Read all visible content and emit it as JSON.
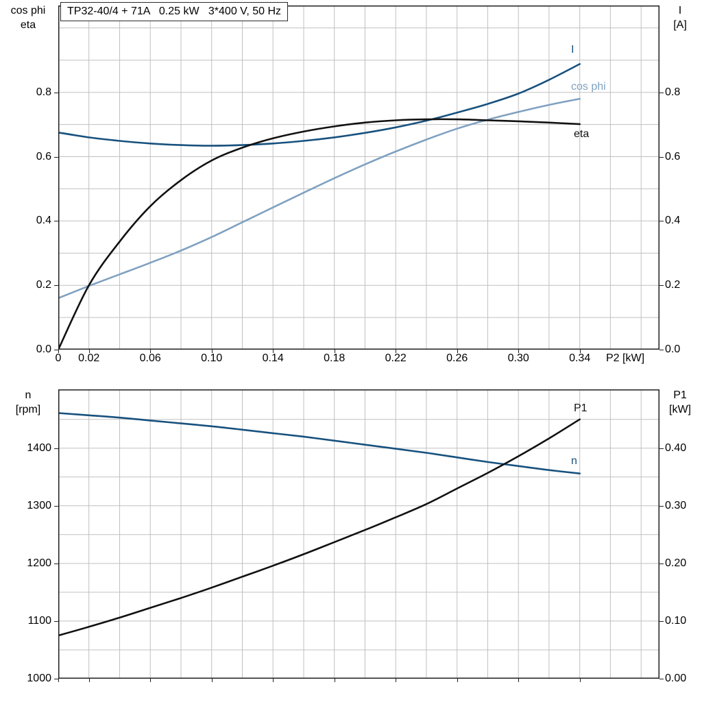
{
  "colors": {
    "grid": "#c0c0c0",
    "frame": "#1f1f1f",
    "text": "#000000",
    "curve_dark_blue": "#17517e",
    "curve_light_blue": "#7fa1c1",
    "curve_black": "#111111"
  },
  "chart_data": [
    {
      "type": "line",
      "title": "TP32-40/4 + 71A   0.25 kW   3*400 V, 50 Hz",
      "xlabel": "P2 [kW]",
      "ylabel_left": [
        "cos phi",
        "eta"
      ],
      "ylabel_right": [
        "I",
        "[A]"
      ],
      "xlim": [
        0,
        0.392
      ],
      "ylim_left": [
        0,
        1.07
      ],
      "ylim_right": [
        0,
        1.07
      ],
      "grid_step_x": 0.02,
      "grid_step_y_left": 0.1,
      "x_ticks": [
        "0",
        "0.02",
        "0.06",
        "0.10",
        "0.14",
        "0.18",
        "0.22",
        "0.26",
        "0.30",
        "0.34"
      ],
      "x_tick_values": [
        0,
        0.02,
        0.06,
        0.1,
        0.14,
        0.18,
        0.22,
        0.26,
        0.3,
        0.34
      ],
      "y_ticks_left": [
        "0.0",
        "0.2",
        "0.4",
        "0.6",
        "0.8"
      ],
      "y_tick_values_left": [
        0,
        0.2,
        0.4,
        0.6,
        0.8
      ],
      "y_ticks_right": [
        "0.0",
        "0.2",
        "0.4",
        "0.6",
        "0.8"
      ],
      "y_tick_values_right": [
        0,
        0.2,
        0.4,
        0.6,
        0.8
      ],
      "x": [
        0,
        0.02,
        0.04,
        0.06,
        0.08,
        0.1,
        0.12,
        0.14,
        0.16,
        0.18,
        0.2,
        0.22,
        0.24,
        0.26,
        0.28,
        0.3,
        0.32,
        0.34
      ],
      "series": [
        {
          "name": "I",
          "axis": "left",
          "color": "#17517e",
          "values": [
            0.675,
            0.66,
            0.649,
            0.641,
            0.636,
            0.634,
            0.636,
            0.641,
            0.649,
            0.66,
            0.674,
            0.691,
            0.712,
            0.737,
            0.764,
            0.796,
            0.839,
            0.888
          ]
        },
        {
          "name": "cos phi",
          "axis": "left",
          "color": "#7fa1c1",
          "values": [
            0.16,
            0.198,
            0.234,
            0.27,
            0.308,
            0.35,
            0.396,
            0.442,
            0.488,
            0.533,
            0.576,
            0.616,
            0.653,
            0.687,
            0.715,
            0.739,
            0.761,
            0.78
          ]
        },
        {
          "name": "eta",
          "axis": "left",
          "color": "#111111",
          "values": [
            0.0,
            0.2,
            0.336,
            0.446,
            0.527,
            0.588,
            0.628,
            0.657,
            0.678,
            0.694,
            0.706,
            0.713,
            0.716,
            0.716,
            0.713,
            0.71,
            0.706,
            0.701
          ]
        }
      ]
    },
    {
      "type": "line",
      "title": "",
      "xlabel": "",
      "ylabel_left": [
        "n",
        "[rpm]"
      ],
      "ylabel_right": [
        "P1",
        "[kW]"
      ],
      "xlim": [
        0,
        0.392
      ],
      "ylim_left": [
        1000,
        1502
      ],
      "ylim_right": [
        0,
        0.502
      ],
      "grid_step_x": 0.02,
      "grid_step_y_left": 50,
      "x_ticks": [],
      "x_tick_values": [
        0,
        0.02,
        0.06,
        0.1,
        0.14,
        0.18,
        0.22,
        0.26,
        0.3,
        0.34
      ],
      "y_ticks_left": [
        "1000",
        "1100",
        "1200",
        "1300",
        "1400"
      ],
      "y_tick_values_left": [
        1000,
        1100,
        1200,
        1300,
        1400
      ],
      "y_ticks_right": [
        "0.00",
        "0.10",
        "0.20",
        "0.30",
        "0.40"
      ],
      "y_tick_values_right": [
        0,
        0.1,
        0.2,
        0.3,
        0.4
      ],
      "x": [
        0,
        0.02,
        0.04,
        0.06,
        0.08,
        0.1,
        0.12,
        0.14,
        0.16,
        0.18,
        0.2,
        0.22,
        0.24,
        0.26,
        0.28,
        0.3,
        0.32,
        0.34
      ],
      "series": [
        {
          "name": "n",
          "axis": "left",
          "color": "#17517e",
          "values": [
            1461,
            1457,
            1453,
            1448,
            1443,
            1438,
            1432,
            1426,
            1420,
            1413,
            1406,
            1399,
            1392,
            1384,
            1376,
            1369,
            1362,
            1356
          ]
        },
        {
          "name": "P1",
          "axis": "right",
          "color": "#111111",
          "values": [
            0.075,
            0.09,
            0.106,
            0.123,
            0.14,
            0.158,
            0.177,
            0.196,
            0.216,
            0.237,
            0.258,
            0.28,
            0.303,
            0.33,
            0.357,
            0.386,
            0.417,
            0.45
          ]
        }
      ]
    }
  ]
}
